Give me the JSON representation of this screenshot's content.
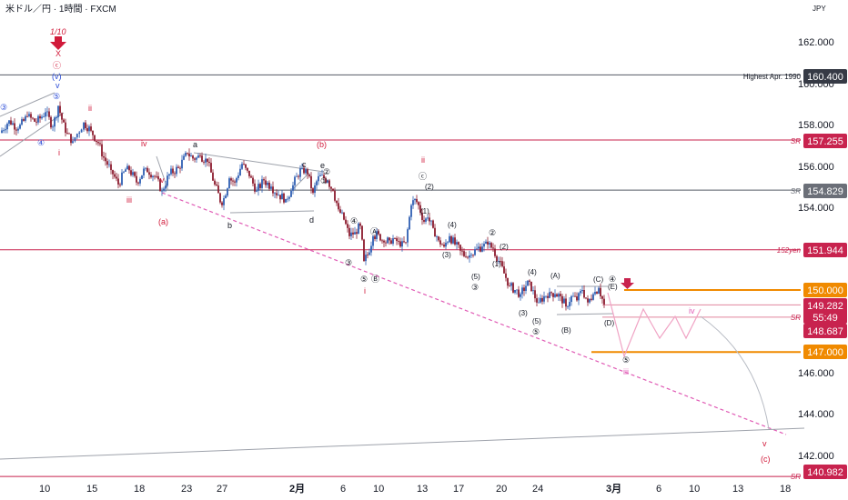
{
  "header": {
    "symbol": "米ドル／円 · 1時間 · FXCM",
    "currency": "JPY"
  },
  "colors": {
    "candle_up": "#2f5fb3",
    "candle_down": "#8c1b2e",
    "red_line": "#c8234e",
    "gray_line": "#9ea2ab",
    "dark_line": "#555a64",
    "orange": "#f08a00",
    "pink_dash": "#e05bb5",
    "badge_red": "#c8234e",
    "badge_gray": "#6b6f78",
    "badge_dark": "#363a45",
    "count_blue": "#2a4bd7",
    "count_red": "#d11a3a",
    "count_black": "#131722"
  },
  "chart_data": {
    "type": "line",
    "title": "",
    "xlabel": "",
    "ylabel": "",
    "ylim": [
      140.6,
      163.4
    ],
    "y_ticks": [
      "162.000",
      "160.000",
      "158.000",
      "156.000",
      "154.000",
      "146.000",
      "144.000",
      "142.000"
    ],
    "x_ticks": [
      "10",
      "15",
      "18",
      "23",
      "27",
      "2月",
      "6",
      "10",
      "13",
      "17",
      "20",
      "24",
      "3月",
      "6",
      "10",
      "13",
      "18"
    ],
    "series": [
      {
        "x": [
          0,
          10,
          20,
          30,
          40,
          50,
          58,
          64,
          72,
          80,
          92,
          100,
          108,
          114,
          122,
          130,
          140,
          150,
          160,
          170,
          178,
          186,
          196,
          206,
          214,
          220,
          228,
          236,
          244,
          252,
          258,
          266,
          274,
          282,
          290,
          298,
          306,
          314,
          320,
          326,
          332,
          338,
          344,
          350,
          356,
          360,
          366,
          372,
          378,
          384,
          390,
          396,
          400,
          404,
          410,
          416,
          422,
          428,
          434,
          440,
          446,
          452,
          456,
          460,
          466,
          470,
          476,
          482,
          488,
          494,
          500,
          506,
          512,
          518,
          524,
          530,
          536,
          542,
          548,
          554,
          560,
          566,
          572,
          578,
          582,
          588,
          592,
          598,
          604,
          610,
          616,
          622,
          628,
          634,
          640,
          646,
          652,
          658,
          664
        ],
        "y": [
          157.6,
          158.2,
          157.8,
          158.4,
          158.1,
          158.6,
          157.9,
          158.9,
          157.6,
          157.2,
          158.1,
          157.7,
          157.1,
          156.4,
          155.8,
          155.1,
          156.0,
          155.2,
          155.9,
          155.5,
          154.8,
          155.6,
          155.9,
          156.6,
          156.3,
          156.5,
          156.2,
          155.1,
          154.1,
          155.4,
          155.2,
          156.1,
          155.5,
          154.8,
          155.3,
          155.0,
          154.6,
          154.4,
          154.8,
          155.5,
          155.9,
          155.6,
          154.7,
          155.5,
          155.4,
          155.3,
          154.8,
          153.9,
          153.4,
          152.6,
          152.8,
          153.1,
          151.4,
          151.7,
          152.6,
          152.7,
          152.3,
          152.4,
          152.5,
          152.1,
          152.3,
          154.1,
          154.4,
          154.1,
          153.3,
          153.5,
          153.0,
          152.4,
          152.1,
          152.6,
          152.2,
          151.9,
          151.6,
          151.7,
          152.0,
          152.1,
          152.2,
          152.0,
          151.4,
          150.8,
          150.2,
          150.0,
          149.8,
          150.2,
          150.4,
          149.6,
          149.4,
          149.7,
          149.9,
          149.8,
          149.7,
          149.2,
          149.7,
          149.5,
          150.0,
          149.4,
          149.8,
          150.1,
          149.3
        ]
      }
    ],
    "levels": [
      {
        "price": 160.4,
        "label": "Highest Apr. 1990",
        "badge": "160.400",
        "style": "dark"
      },
      {
        "price": 157.255,
        "label": "SR",
        "badge": "157.255",
        "style": "red"
      },
      {
        "price": 154.829,
        "label": "SR",
        "badge": "154.829",
        "style": "gray"
      },
      {
        "price": 151.944,
        "label": "152yen",
        "badge": "151.944",
        "style": "red"
      },
      {
        "price": 150.0,
        "label": "",
        "badge": "150.000",
        "style": "orange"
      },
      {
        "price": 149.282,
        "label": "",
        "badge": "149.282",
        "style": "red"
      },
      {
        "price": 148.687,
        "label": "SR",
        "badge": "148.687",
        "style": "red"
      },
      {
        "price": 147.0,
        "label": "",
        "badge": "147.000",
        "style": "orange"
      },
      {
        "price": 140.982,
        "label": "SR",
        "badge": "140.982",
        "style": "red"
      }
    ],
    "countdown": "55:49"
  },
  "wave_labels": {
    "top_date": "1/10",
    "x_label": "X",
    "c_circle": "ⓒ",
    "v_paren": "(v)",
    "v_small": "v",
    "ii": "ii",
    "iv": "iv",
    "iii": "iii",
    "v": "v",
    "i": "i",
    "a_paren": "(a)",
    "b_paren": "(b)",
    "c_paren": "(c)",
    "a": "a",
    "b": "b",
    "c": "c",
    "d": "d",
    "e": "e",
    "c_circled": "ⓒ",
    "one": "①",
    "two": "②",
    "three": "③",
    "four": "④",
    "five": "⑤",
    "A": "Ⓐ",
    "B": "Ⓑ",
    "p1": "(1)",
    "p2": "(2)",
    "p3": "(3)",
    "p4": "(4)",
    "p5": "(5)",
    "pA": "(A)",
    "pB": "(B)",
    "pC": "(C)",
    "pD": "(D)",
    "pE": "(E)"
  }
}
